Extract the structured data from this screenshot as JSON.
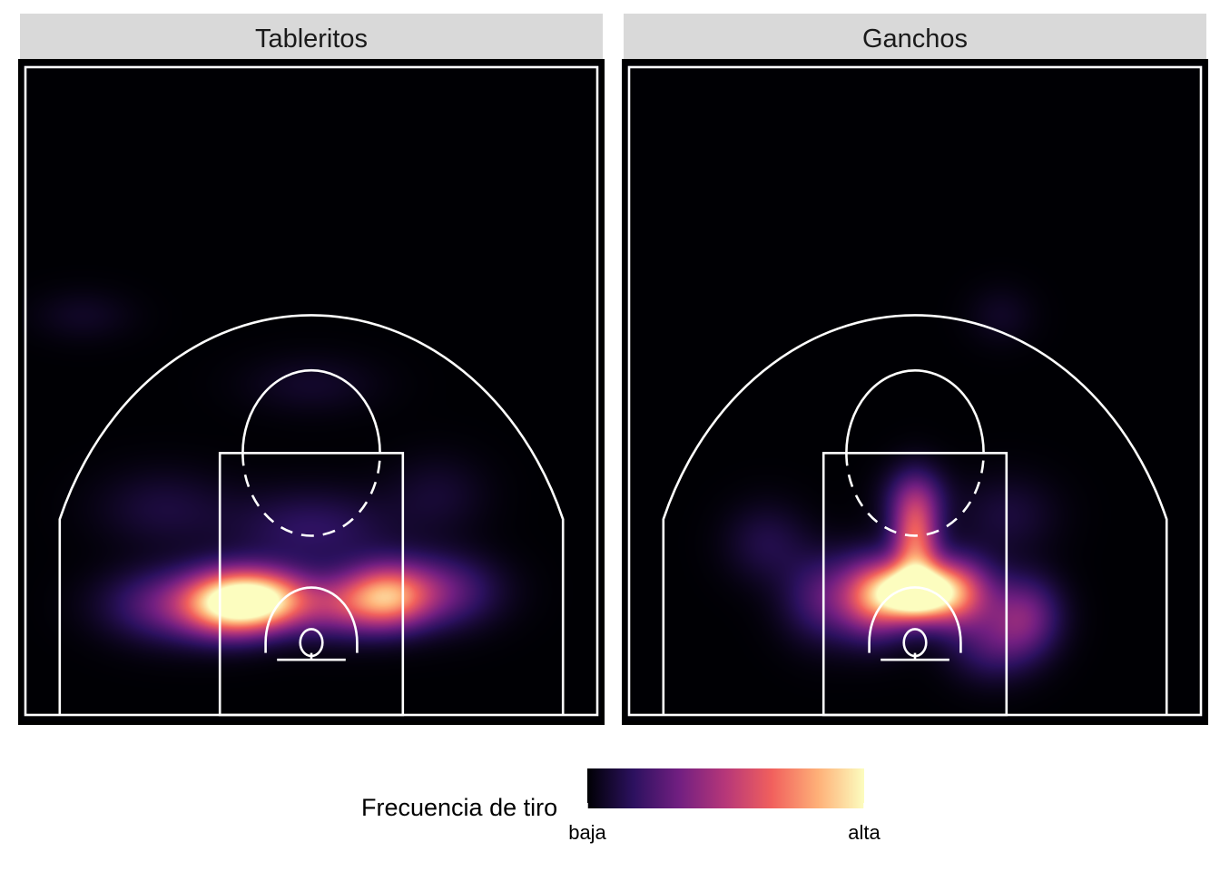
{
  "chart_data": {
    "type": "heatmap",
    "layout": "facets",
    "legend": {
      "title": "Frecuencia de tiro",
      "low_label": "baja",
      "high_label": "alta",
      "position": "bottom",
      "colormap": [
        "#000004",
        "#2c115f",
        "#721f81",
        "#b73779",
        "#f1605d",
        "#feb078",
        "#fcfdbf"
      ]
    },
    "court": {
      "x_range": [
        -25,
        25
      ],
      "y_range": [
        0,
        47
      ],
      "hoop": [
        0,
        5.25
      ],
      "lane_width": 16,
      "free_throw_line_y": 19,
      "free_throw_circle_radius": 6,
      "restricted_area_radius": 4,
      "three_point_radius": 23.75,
      "corner_three_x": 22,
      "corner_three_y": 14
    },
    "panels": [
      {
        "title": "Tableritos",
        "density_peaks": [
          {
            "x": -7,
            "y": 8.2,
            "intensity": 0.92,
            "sx": 2.8,
            "sy": 1.6
          },
          {
            "x": -3.5,
            "y": 8.4,
            "intensity": 0.58,
            "sx": 2.5,
            "sy": 1.5
          },
          {
            "x": 6.5,
            "y": 8.6,
            "intensity": 0.66,
            "sx": 2.6,
            "sy": 1.6
          },
          {
            "x": 2,
            "y": 8,
            "intensity": 0.36,
            "sx": 3,
            "sy": 1.6
          },
          {
            "x": -12,
            "y": 8,
            "intensity": 0.32,
            "sx": 4,
            "sy": 1.8
          },
          {
            "x": 11,
            "y": 9,
            "intensity": 0.3,
            "sx": 3.5,
            "sy": 1.8
          },
          {
            "x": 0,
            "y": 13.5,
            "intensity": 0.17,
            "sx": 5,
            "sy": 2
          },
          {
            "x": -13,
            "y": 15,
            "intensity": 0.1,
            "sx": 4,
            "sy": 2
          },
          {
            "x": 11,
            "y": 16,
            "intensity": 0.08,
            "sx": 3,
            "sy": 2
          },
          {
            "x": 0,
            "y": 24,
            "intensity": 0.07,
            "sx": 4,
            "sy": 1.5
          },
          {
            "x": -20,
            "y": 29,
            "intensity": 0.06,
            "sx": 3,
            "sy": 1.3
          }
        ]
      },
      {
        "title": "Ganchos",
        "density_peaks": [
          {
            "x": 0,
            "y": 8.9,
            "intensity": 0.98,
            "sx": 2.3,
            "sy": 1.3
          },
          {
            "x": 0,
            "y": 12.5,
            "intensity": 0.62,
            "sx": 1.4,
            "sy": 2.5
          },
          {
            "x": -3.5,
            "y": 8.6,
            "intensity": 0.6,
            "sx": 2.2,
            "sy": 2
          },
          {
            "x": 3.5,
            "y": 8.9,
            "intensity": 0.6,
            "sx": 2.3,
            "sy": 1.8
          },
          {
            "x": 9.5,
            "y": 7.2,
            "intensity": 0.34,
            "sx": 2.2,
            "sy": 2
          },
          {
            "x": -8,
            "y": 8.5,
            "intensity": 0.24,
            "sx": 2.5,
            "sy": 2.2
          },
          {
            "x": 6.5,
            "y": 5,
            "intensity": 0.18,
            "sx": 2.5,
            "sy": 1.8
          },
          {
            "x": 0,
            "y": 15.8,
            "intensity": 0.2,
            "sx": 2,
            "sy": 1.6
          },
          {
            "x": -13,
            "y": 12.5,
            "intensity": 0.12,
            "sx": 2.5,
            "sy": 2
          },
          {
            "x": 8,
            "y": 14.5,
            "intensity": 0.1,
            "sx": 3,
            "sy": 2
          },
          {
            "x": 7.5,
            "y": 29,
            "intensity": 0.06,
            "sx": 2,
            "sy": 1.5
          }
        ]
      }
    ]
  }
}
